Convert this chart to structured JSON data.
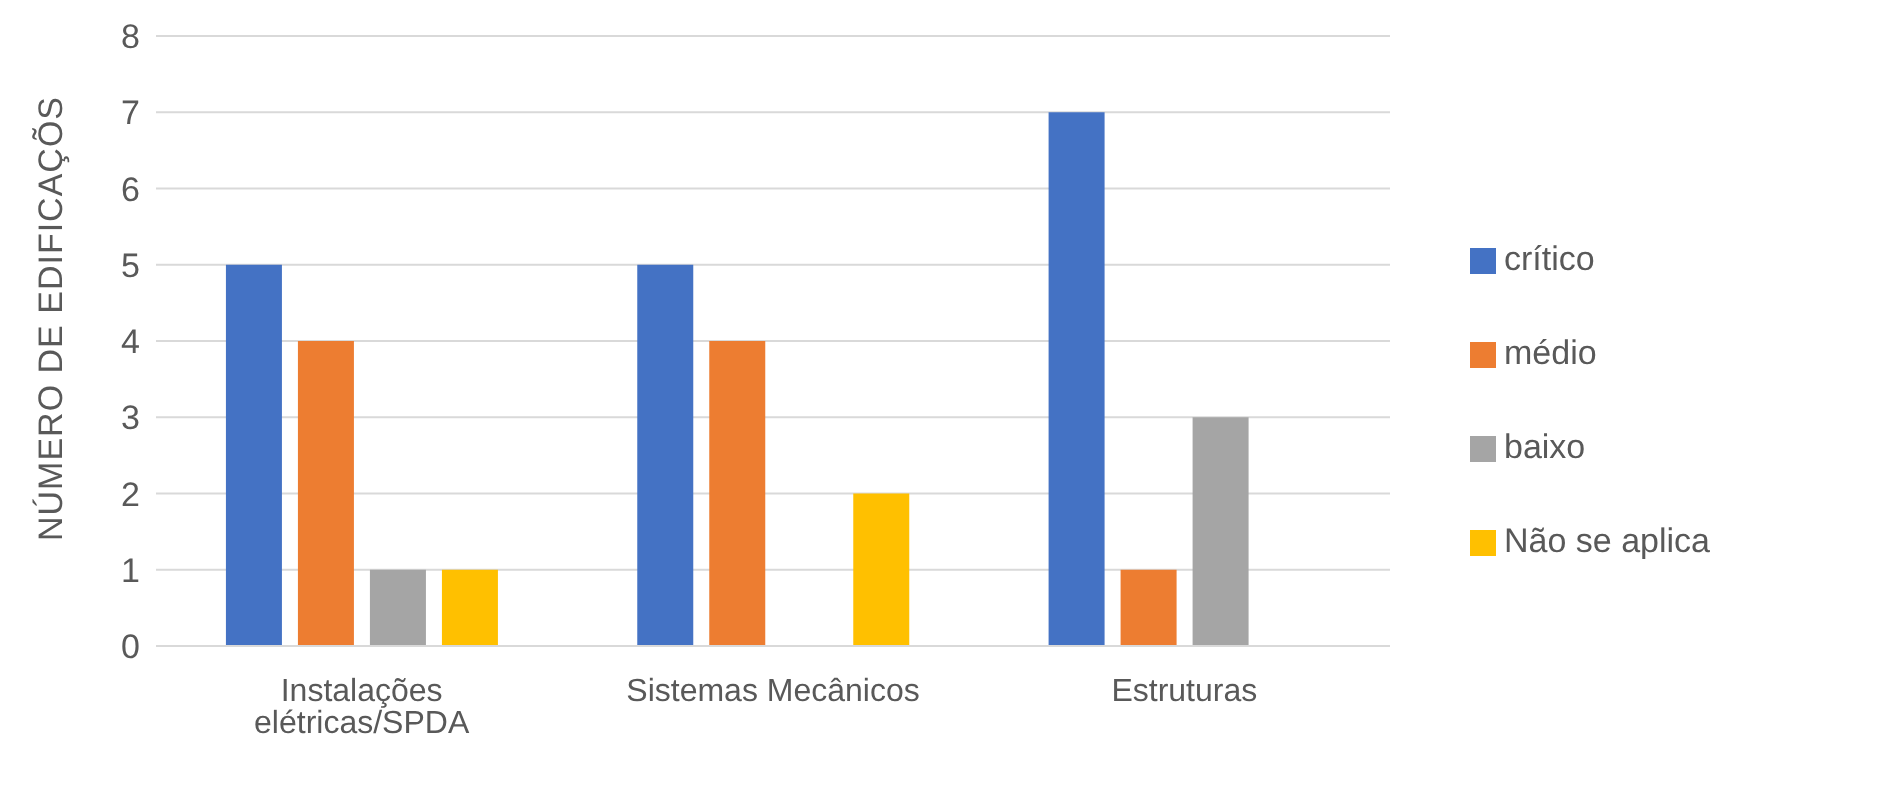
{
  "chart_data": {
    "type": "bar",
    "ylabel": "NÚMERO DE EDIFICAÇÕS",
    "categories": [
      "Instalações elétricas/SPDA",
      "Sistemas Mecânicos",
      "Estruturas"
    ],
    "series": [
      {
        "name": "crítico",
        "color": "#4472c4",
        "values": [
          5,
          5,
          7
        ]
      },
      {
        "name": "médio",
        "color": "#ed7d31",
        "values": [
          4,
          4,
          1
        ]
      },
      {
        "name": "baixo",
        "color": "#a5a5a5",
        "values": [
          1,
          0,
          3
        ]
      },
      {
        "name": "Não se aplica",
        "color": "#ffc000",
        "values": [
          1,
          2,
          0
        ]
      }
    ],
    "ylim": [
      0,
      8
    ],
    "yticks": [
      0,
      1,
      2,
      3,
      4,
      5,
      6,
      7,
      8
    ],
    "grid": "y",
    "legend": "right"
  }
}
